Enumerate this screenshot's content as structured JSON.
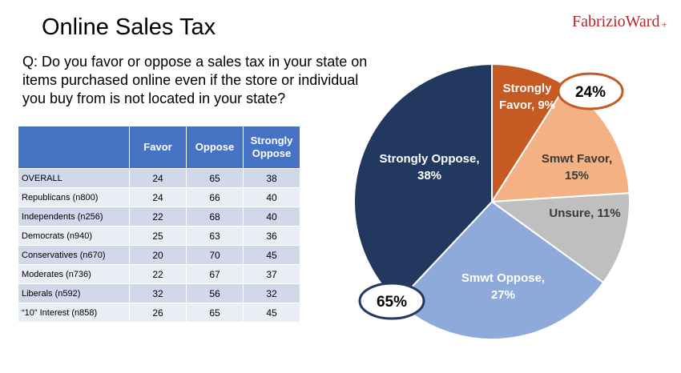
{
  "title": "Online Sales Tax",
  "brand": {
    "name": "FabrizioWard",
    "plus": "+"
  },
  "question": "Q: Do you favor or oppose a sales tax in your state on items purchased online even if the store or individual you buy from is not located in your state?",
  "table": {
    "headers": [
      "",
      "Favor",
      "Oppose",
      "Strongly Oppose"
    ],
    "rows": [
      [
        "OVERALL",
        "24",
        "65",
        "38"
      ],
      [
        "Republicans (n800)",
        "24",
        "66",
        "40"
      ],
      [
        "Independents (n256)",
        "22",
        "68",
        "40"
      ],
      [
        "Democrats (n940)",
        "25",
        "63",
        "36"
      ],
      [
        "Conservatives (n670)",
        "20",
        "70",
        "45"
      ],
      [
        "Moderates (n736)",
        "22",
        "67",
        "37"
      ],
      [
        "Liberals (n592)",
        "32",
        "56",
        "32"
      ],
      [
        "“10” Interest (n858)",
        "26",
        "65",
        "45"
      ]
    ]
  },
  "chart_data": {
    "type": "pie",
    "slices": [
      {
        "label": "Strongly Favor, 9%",
        "value": 9,
        "color": "#c55a22",
        "text_color": "#ffffff"
      },
      {
        "label": "Smwt Favor, 15%",
        "value": 15,
        "color": "#f4b184",
        "text_color": "#3a3a3a"
      },
      {
        "label": "Unsure, 11%",
        "value": 11,
        "color": "#bfbfbf",
        "text_color": "#3a3a3a"
      },
      {
        "label": "Smwt Oppose, 27%",
        "value": 27,
        "color": "#8eaadb",
        "text_color": "#ffffff"
      },
      {
        "label": "Strongly Oppose, 38%",
        "value": 38,
        "color": "#23385f",
        "text_color": "#ffffff"
      }
    ],
    "callouts": [
      {
        "text": "24%",
        "border_color": "#c55a22"
      },
      {
        "text": "65%",
        "border_color": "#23385f"
      }
    ]
  }
}
